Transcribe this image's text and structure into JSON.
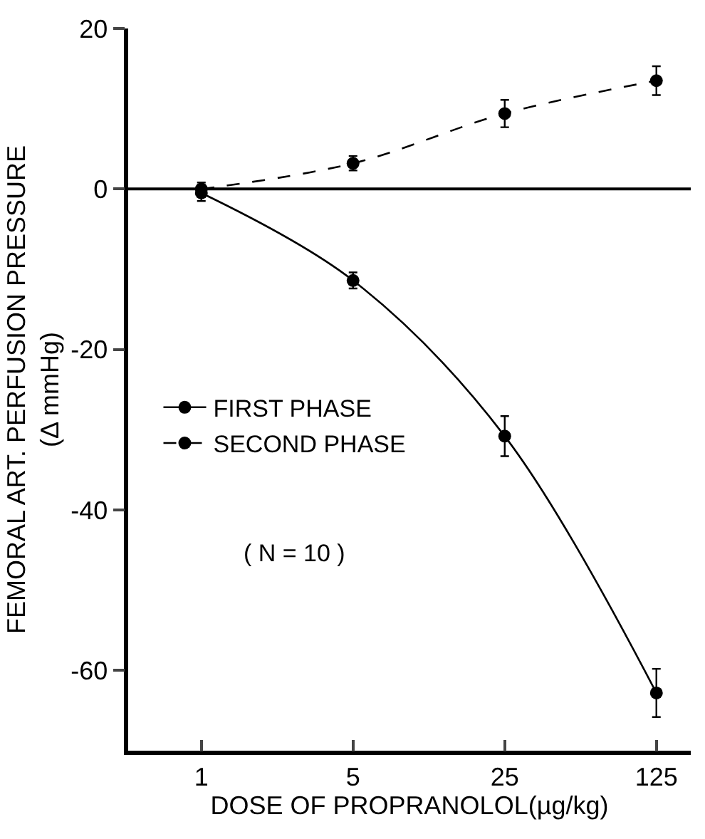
{
  "chart_data": {
    "type": "line",
    "xlabel": "DOSE OF PROPRANOLOL(µg/kg)",
    "ylabel": "FEMORAL ART. PERFUSION PRESSURE\n(Δ mmHg)",
    "x": [
      1,
      5,
      25,
      125
    ],
    "log": "x",
    "xlim": [
      0.46,
      180
    ],
    "xticks": [
      1,
      5,
      25,
      125
    ],
    "ylim": [
      -70,
      20
    ],
    "yticks": [
      20,
      0,
      -20,
      -40,
      -60
    ],
    "series": [
      {
        "name": "FIRST PHASE",
        "color": "#000000",
        "line_style": "solid",
        "values": [
          -0.5,
          -11.4,
          -30.8,
          -62.8
        ],
        "errors": [
          1,
          1,
          2.5,
          3
        ]
      },
      {
        "name": "SECOND PHASE",
        "color": "#000000",
        "line_style": "dashed",
        "values": [
          0,
          3.2,
          9.4,
          13.5
        ],
        "errors": [
          0.8,
          0.9,
          1.7,
          1.8
        ]
      }
    ],
    "ref_lines": [
      {
        "axis": "y",
        "value": 0,
        "color": "#000000",
        "line_style": "solid"
      }
    ],
    "annotations": [
      "( N = 10 )"
    ],
    "marker": "circle",
    "legend": "left"
  }
}
